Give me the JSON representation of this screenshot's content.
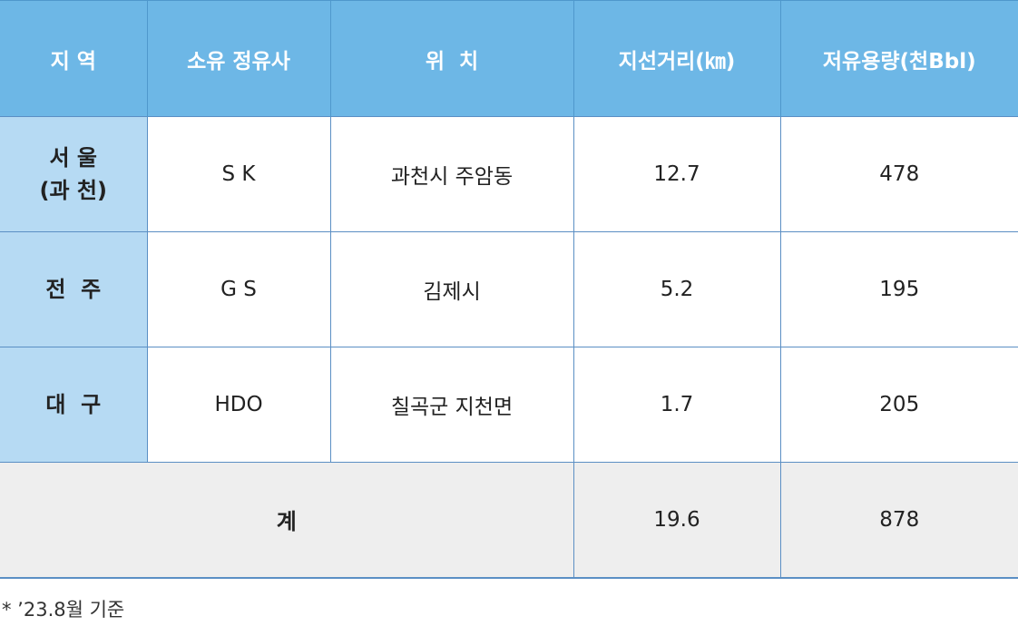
{
  "headers": {
    "region": "지 역",
    "company": "소유 정유사",
    "location": "위  치",
    "distance": "지선거리(㎞)",
    "capacity": "저유용량(천Bbl)"
  },
  "rows": [
    {
      "region_line1": "서 울",
      "region_line2": "(과 천)",
      "company": "S K",
      "location": "과천시 주암동",
      "distance": "12.7",
      "capacity": "478"
    },
    {
      "region_line1": "전  주",
      "company": "G S",
      "location": "김제시",
      "distance": "5.2",
      "capacity": "195"
    },
    {
      "region_line1": "대  구",
      "company": "HDO",
      "location": "칠곡군 지천면",
      "distance": "1.7",
      "capacity": "205"
    }
  ],
  "total": {
    "label": "계",
    "distance": "19.6",
    "capacity": "878"
  },
  "footnote": "* ’23.8월 기준",
  "colors": {
    "header_bg": "#6db7e6",
    "region_bg": "#b6daf3",
    "total_bg": "#eeeeee",
    "border": "#5b8fc4"
  }
}
